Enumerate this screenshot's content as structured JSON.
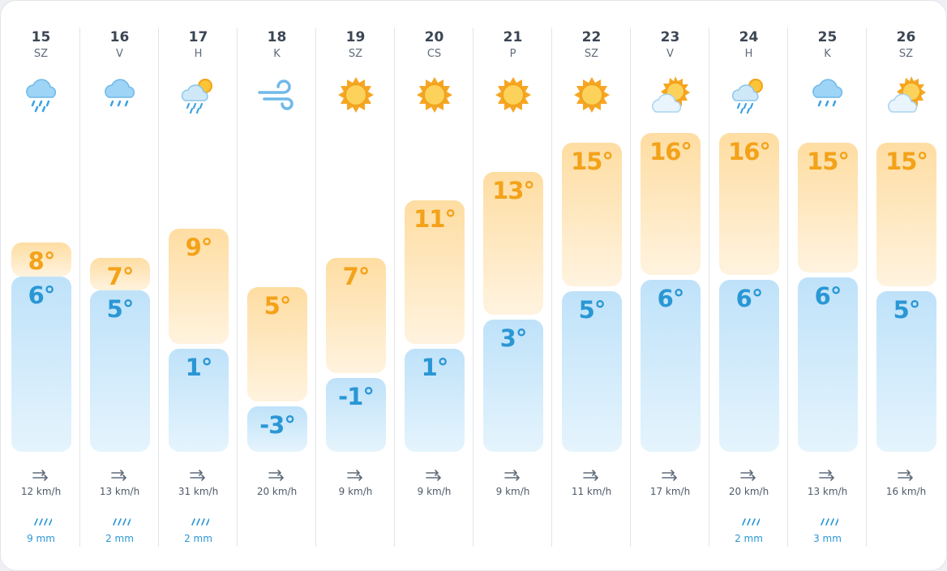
{
  "days": [
    {
      "day": "15",
      "weekday": "SZ",
      "icon": "rain-cloud-icon",
      "high": "8°",
      "low": "6°",
      "wind": "12 km/h",
      "rain": "9 mm"
    },
    {
      "day": "16",
      "weekday": "V",
      "icon": "rain-cloud-icon",
      "high": "7°",
      "low": "5°",
      "wind": "13 km/h",
      "rain": "2 mm"
    },
    {
      "day": "17",
      "weekday": "H",
      "icon": "sun-rain-cloud-icon",
      "high": "9°",
      "low": "1°",
      "wind": "31 km/h",
      "rain": "2 mm"
    },
    {
      "day": "18",
      "weekday": "K",
      "icon": "wind-icon",
      "high": "5°",
      "low": "-3°",
      "wind": "20 km/h",
      "rain": ""
    },
    {
      "day": "19",
      "weekday": "SZ",
      "icon": "sun-icon",
      "high": "7°",
      "low": "-1°",
      "wind": "9 km/h",
      "rain": ""
    },
    {
      "day": "20",
      "weekday": "CS",
      "icon": "sun-icon",
      "high": "11°",
      "low": "1°",
      "wind": "9 km/h",
      "rain": ""
    },
    {
      "day": "21",
      "weekday": "P",
      "icon": "sun-icon",
      "high": "13°",
      "low": "3°",
      "wind": "9 km/h",
      "rain": ""
    },
    {
      "day": "22",
      "weekday": "SZ",
      "icon": "sun-icon",
      "high": "15°",
      "low": "5°",
      "wind": "11 km/h",
      "rain": ""
    },
    {
      "day": "23",
      "weekday": "V",
      "icon": "sun-cloud-icon",
      "high": "16°",
      "low": "6°",
      "wind": "17 km/h",
      "rain": ""
    },
    {
      "day": "24",
      "weekday": "H",
      "icon": "sun-rain-cloud-icon",
      "high": "16°",
      "low": "6°",
      "wind": "20 km/h",
      "rain": "2 mm"
    },
    {
      "day": "25",
      "weekday": "K",
      "icon": "rain-cloud-icon",
      "high": "15°",
      "low": "6°",
      "wind": "13 km/h",
      "rain": "3 mm"
    },
    {
      "day": "26",
      "weekday": "SZ",
      "icon": "sun-cloud-icon",
      "high": "15°",
      "low": "5°",
      "wind": "16 km/h",
      "rain": ""
    }
  ],
  "colors": {
    "high_bar": "#fedda2",
    "low_bar": "#bfe2f9",
    "high_text": "#f3a219",
    "low_text": "#2a97d5"
  }
}
